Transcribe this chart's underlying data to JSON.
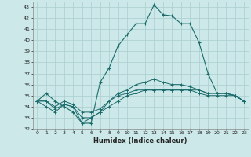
{
  "xlabel": "Humidex (Indice chaleur)",
  "bg_color": "#cce8e8",
  "line_color": "#1a6b6b",
  "grid_color": "#aacece",
  "xlim": [
    -0.5,
    23.5
  ],
  "ylim": [
    32,
    43.5
  ],
  "yticks": [
    32,
    33,
    34,
    35,
    36,
    37,
    38,
    39,
    40,
    41,
    42,
    43
  ],
  "xticks": [
    0,
    1,
    2,
    3,
    4,
    5,
    6,
    7,
    8,
    9,
    10,
    11,
    12,
    13,
    14,
    15,
    16,
    17,
    18,
    19,
    20,
    21,
    22,
    23
  ],
  "line_main": [
    34.5,
    35.2,
    34.5,
    34.0,
    33.5,
    32.5,
    32.5,
    36.2,
    37.5,
    39.5,
    40.5,
    41.5,
    41.5,
    43.2,
    42.3,
    42.2,
    41.5,
    41.5,
    39.8,
    37.0,
    35.2,
    35.2,
    35.0,
    34.5
  ],
  "line2": [
    34.5,
    34.0,
    33.5,
    34.2,
    34.0,
    32.5,
    33.0,
    33.5,
    34.5,
    35.2,
    35.5,
    36.0,
    36.2,
    36.5,
    36.2,
    36.0,
    36.0,
    35.8,
    35.5,
    35.2,
    35.2,
    35.2,
    35.0,
    34.5
  ],
  "line3": [
    34.5,
    34.5,
    34.0,
    34.5,
    34.2,
    33.5,
    33.5,
    33.8,
    34.5,
    35.0,
    35.2,
    35.5,
    35.5,
    35.5,
    35.5,
    35.5,
    35.5,
    35.5,
    35.5,
    35.2,
    35.2,
    35.2,
    35.0,
    34.5
  ],
  "line4": [
    34.5,
    34.5,
    33.8,
    34.2,
    34.0,
    33.0,
    33.0,
    33.5,
    34.0,
    34.5,
    35.0,
    35.2,
    35.5,
    35.5,
    35.5,
    35.5,
    35.5,
    35.5,
    35.2,
    35.0,
    35.0,
    35.0,
    35.0,
    34.5
  ]
}
